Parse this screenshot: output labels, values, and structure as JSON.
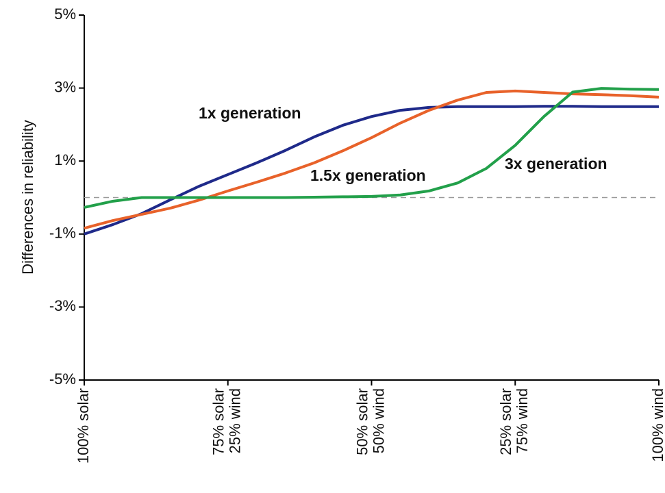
{
  "chart_data": {
    "type": "line",
    "y_label": "Differences in reliability",
    "x": [
      0,
      5,
      10,
      15,
      20,
      25,
      30,
      35,
      40,
      45,
      50,
      55,
      60,
      65,
      70,
      75,
      80,
      85,
      90,
      95,
      100
    ],
    "xlim": [
      0,
      100
    ],
    "xticks": [
      {
        "value": 0,
        "label": [
          "100% solar"
        ]
      },
      {
        "value": 25,
        "label": [
          "75% solar",
          "25% wind"
        ]
      },
      {
        "value": 50,
        "label": [
          "50% solar",
          "50% wind"
        ]
      },
      {
        "value": 75,
        "label": [
          "25% solar",
          "75% wind"
        ]
      },
      {
        "value": 100,
        "label": [
          "100% wind"
        ]
      }
    ],
    "ylim": [
      -5,
      5
    ],
    "yticks": [
      {
        "value": 5,
        "label": "5%"
      },
      {
        "value": 3,
        "label": "3%"
      },
      {
        "value": 1,
        "label": "1%"
      },
      {
        "value": -1,
        "label": "-1%"
      },
      {
        "value": -3,
        "label": "-3%"
      },
      {
        "value": -5,
        "label": "-5%"
      }
    ],
    "reference_line": 0,
    "series": [
      {
        "name": "1x generation",
        "color": "#1f2a8a",
        "values": [
          -1.0,
          -0.74,
          -0.44,
          -0.06,
          0.31,
          0.63,
          0.95,
          1.29,
          1.66,
          1.98,
          2.22,
          2.39,
          2.47,
          2.49,
          2.49,
          2.49,
          2.5,
          2.5,
          2.49,
          2.49,
          2.49
        ]
      },
      {
        "name": "1.5x generation",
        "color": "#e8622a",
        "values": [
          -0.84,
          -0.63,
          -0.46,
          -0.29,
          -0.07,
          0.18,
          0.42,
          0.67,
          0.95,
          1.28,
          1.64,
          2.04,
          2.39,
          2.67,
          2.88,
          2.92,
          2.88,
          2.84,
          2.82,
          2.79,
          2.75
        ]
      },
      {
        "name": "3x generation",
        "color": "#22a04a",
        "values": [
          -0.27,
          -0.1,
          0.0,
          0.0,
          0.0,
          0.0,
          0.0,
          0.0,
          0.01,
          0.02,
          0.03,
          0.07,
          0.18,
          0.4,
          0.8,
          1.43,
          2.22,
          2.89,
          2.99,
          2.97,
          2.96
        ]
      }
    ]
  }
}
